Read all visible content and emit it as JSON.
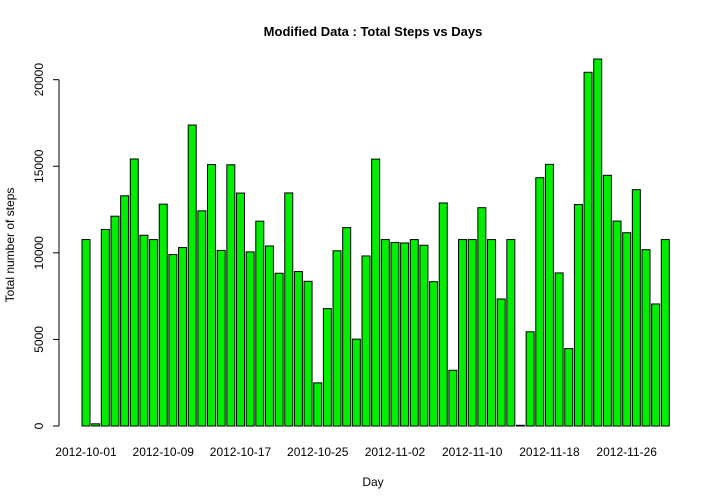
{
  "chart_data": {
    "type": "bar",
    "title": "Modified Data : Total Steps vs Days",
    "xlabel": "Day",
    "ylabel": "Total number of steps",
    "ylim": [
      0,
      21194
    ],
    "yticks": [
      0,
      5000,
      10000,
      15000,
      20000
    ],
    "grid": false,
    "bar_color": "#00ee00",
    "categories": [
      "2012-10-01",
      "2012-10-02",
      "2012-10-03",
      "2012-10-04",
      "2012-10-05",
      "2012-10-06",
      "2012-10-07",
      "2012-10-08",
      "2012-10-09",
      "2012-10-10",
      "2012-10-11",
      "2012-10-12",
      "2012-10-13",
      "2012-10-14",
      "2012-10-15",
      "2012-10-16",
      "2012-10-17",
      "2012-10-18",
      "2012-10-19",
      "2012-10-20",
      "2012-10-21",
      "2012-10-22",
      "2012-10-23",
      "2012-10-24",
      "2012-10-25",
      "2012-10-26",
      "2012-10-27",
      "2012-10-28",
      "2012-10-29",
      "2012-10-30",
      "2012-10-31",
      "2012-11-01",
      "2012-11-02",
      "2012-11-03",
      "2012-11-04",
      "2012-11-05",
      "2012-11-06",
      "2012-11-07",
      "2012-11-08",
      "2012-11-09",
      "2012-11-10",
      "2012-11-11",
      "2012-11-12",
      "2012-11-13",
      "2012-11-14",
      "2012-11-15",
      "2012-11-16",
      "2012-11-17",
      "2012-11-18",
      "2012-11-19",
      "2012-11-20",
      "2012-11-21",
      "2012-11-22",
      "2012-11-23",
      "2012-11-24",
      "2012-11-25",
      "2012-11-26",
      "2012-11-27",
      "2012-11-28",
      "2012-11-29",
      "2012-11-30"
    ],
    "values": [
      10766,
      126,
      11352,
      12116,
      13294,
      15420,
      11015,
      10766,
      12811,
      9900,
      10304,
      17382,
      12426,
      15098,
      10139,
      15084,
      13452,
      10056,
      11829,
      10395,
      8821,
      13460,
      8918,
      8355,
      2492,
      6778,
      10119,
      11458,
      5018,
      9819,
      15414,
      10766,
      10600,
      10571,
      10766,
      10439,
      8334,
      12883,
      3219,
      10766,
      10766,
      12608,
      10765,
      7336,
      10766,
      41,
      5441,
      14339,
      15110,
      8841,
      4472,
      12787,
      20427,
      21194,
      14478,
      11834,
      11162,
      13646,
      10183,
      7047,
      10766
    ],
    "x_tick_labels": [
      "2012-10-01",
      "2012-10-09",
      "2012-10-17",
      "2012-10-25",
      "2012-11-02",
      "2012-11-10",
      "2012-11-18",
      "2012-11-26"
    ]
  }
}
